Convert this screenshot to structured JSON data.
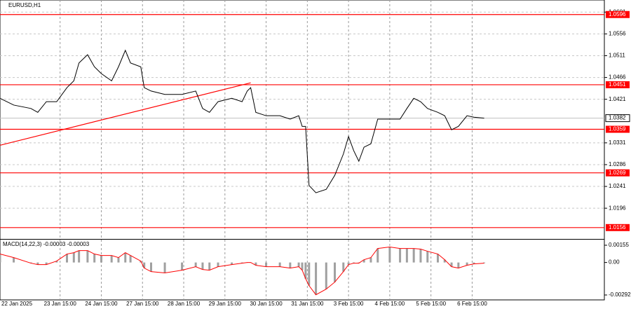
{
  "chart_data": {
    "type": "line",
    "title": "EURUSD,H1",
    "x": [
      0,
      8,
      18,
      22,
      27,
      33,
      39,
      43,
      46,
      51,
      55,
      59,
      65,
      69,
      73,
      76,
      82,
      84,
      88,
      96,
      106,
      114,
      118,
      122,
      127,
      135,
      141,
      144,
      146,
      149,
      155,
      163,
      169,
      174,
      176,
      178,
      180,
      184,
      190,
      195,
      200,
      203,
      206,
      209,
      212,
      216,
      220,
      227,
      233,
      237,
      241,
      245,
      249,
      255,
      259,
      263,
      267,
      272,
      276,
      282
    ],
    "series": [
      {
        "name": "EURUSD",
        "color": "#000000",
        "values": [
          1.0423,
          1.0409,
          1.0402,
          1.0394,
          1.0416,
          1.0416,
          1.0445,
          1.0459,
          1.0496,
          1.0513,
          1.0488,
          1.0474,
          1.0459,
          1.0488,
          1.0522,
          1.0496,
          1.0488,
          1.0445,
          1.0438,
          1.0431,
          1.0431,
          1.0438,
          1.0402,
          1.0394,
          1.0416,
          1.0423,
          1.0416,
          1.0438,
          1.0445,
          1.0394,
          1.0387,
          1.0387,
          1.038,
          1.0387,
          1.0365,
          1.0365,
          1.0243,
          1.0228,
          1.0235,
          1.0264,
          1.0308,
          1.0344,
          1.0315,
          1.0293,
          1.0322,
          1.0329,
          1.038,
          1.038,
          1.038,
          1.0402,
          1.0423,
          1.0416,
          1.0402,
          1.0394,
          1.0387,
          1.0358,
          1.0365,
          1.0387,
          1.0384,
          1.0382
        ]
      }
    ],
    "xlim": [
      0,
      352
    ],
    "xticks": [
      {
        "value": 0,
        "label": "22 Jan 2025"
      },
      {
        "value": 35,
        "label": "23 Jan 15:00"
      },
      {
        "value": 59,
        "label": "24 Jan 15:00"
      },
      {
        "value": 83,
        "label": "27 Jan 15:00"
      },
      {
        "value": 107,
        "label": "28 Jan 15:00"
      },
      {
        "value": 131,
        "label": "29 Jan 15:00"
      },
      {
        "value": 155,
        "label": "30 Jan 15:00"
      },
      {
        "value": 179,
        "label": "31 Jan 15:00"
      },
      {
        "value": 203,
        "label": "3 Feb 15:00"
      },
      {
        "value": 227,
        "label": "4 Feb 15:00"
      },
      {
        "value": 251,
        "label": "5 Feb 15:00"
      },
      {
        "value": 275,
        "label": "6 Feb 15:00"
      }
    ],
    "ylim": [
      1.0134,
      1.0626
    ],
    "yticks": [
      1.0601,
      1.0556,
      1.0511,
      1.0466,
      1.0421,
      1.0331,
      1.0286,
      1.0241,
      1.0196
    ],
    "grid": true,
    "levels": [
      {
        "value": 1.0596,
        "color": "#ff0000"
      },
      {
        "value": 1.0451,
        "color": "#ff0000"
      },
      {
        "value": 1.0359,
        "color": "#ff0000"
      },
      {
        "value": 1.0269,
        "color": "#ff0000"
      },
      {
        "value": 1.0156,
        "color": "#ff0000"
      }
    ],
    "current_price": 1.0382,
    "trendline": {
      "x": [
        0,
        146
      ],
      "values": [
        1.0326,
        1.0455
      ],
      "color": "#ff0000"
    },
    "macd": {
      "label": "MACD(14,22,3) -0.00003 -0.00003",
      "color": "#ff0000",
      "bar_color": "#a0a0a0",
      "values": [
        0.00076,
        0.00044,
        -6e-05,
        -0.00019,
        -0.00019,
        0.00013,
        0.00076,
        0.00088,
        0.00107,
        0.00107,
        0.00076,
        0.00063,
        0.00063,
        0.00044,
        0.00088,
        0.00063,
        0.00013,
        -0.0005,
        -0.00082,
        -0.00094,
        -0.00069,
        -0.00038,
        -0.00063,
        -0.00069,
        -0.00038,
        -0.00019,
        -6e-05,
        0,
        0,
        -0.00025,
        -0.00038,
        -0.00038,
        -0.0005,
        -0.00038,
        -0.00069,
        -0.00145,
        -0.00208,
        -0.0029,
        -0.00239,
        -0.00176,
        -0.00082,
        -0.00019,
        -6e-05,
        -6e-05,
        0.00025,
        0.00044,
        0.00126,
        0.00139,
        0.00126,
        0.00126,
        0.00126,
        0.0012,
        0.00101,
        0.00076,
        0.00025,
        -0.00038,
        -0.0005,
        -0.00025,
        -0.00013,
        -6e-05
      ],
      "ylim": [
        -0.00336,
        0.00199
      ],
      "yticks": [
        0.00155,
        {
          "value": 0,
          "label": "0.00"
        },
        -0.00292
      ]
    }
  }
}
